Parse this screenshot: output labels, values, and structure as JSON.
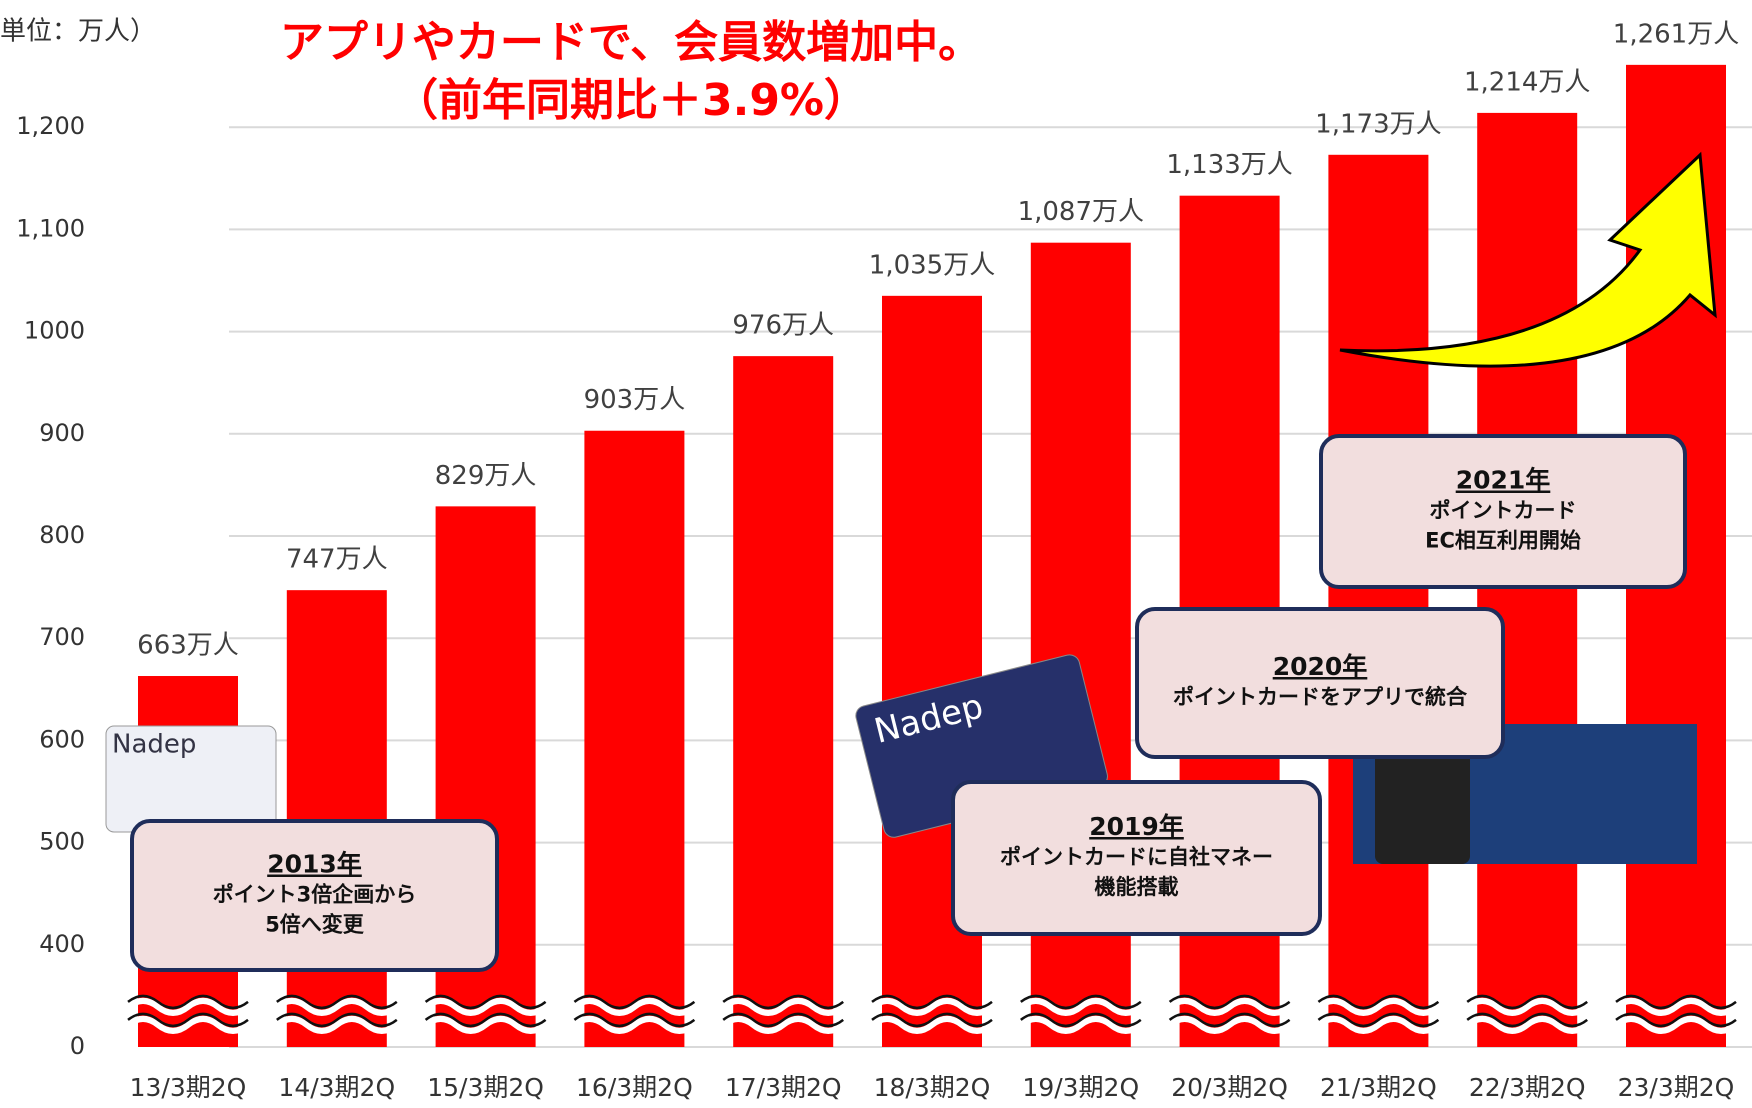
{
  "chart_data": {
    "type": "bar",
    "title": [
      "アプリやカードで、会員数増加中。",
      "（前年同期比＋3.9%）"
    ],
    "unit_label": "単位：万人）",
    "categories": [
      "13/3期2Q",
      "14/3期2Q",
      "15/3期2Q",
      "16/3期2Q",
      "17/3期2Q",
      "18/3期2Q",
      "19/3期2Q",
      "20/3期2Q",
      "21/3期2Q",
      "22/3期2Q",
      "23/3期2Q"
    ],
    "values": [
      663,
      747,
      829,
      903,
      976,
      1035,
      1087,
      1133,
      1173,
      1214,
      1261
    ],
    "value_labels": [
      "663万人",
      "747万人",
      "829万人",
      "903万人",
      "976万人",
      "1,035万人",
      "1,087万人",
      "1,133万人",
      "1,173万人",
      "1,214万人",
      "1,261万人"
    ],
    "color": "#ff0000",
    "ylim": [
      0,
      1300
    ],
    "yticks": [
      0,
      400,
      500,
      600,
      700,
      800,
      900,
      1000,
      {
        "value": 1100,
        "label": "1,100"
      },
      {
        "value": 1200,
        "label": "1,200"
      }
    ],
    "axis_break": true,
    "grid": true,
    "annotations": [
      {
        "year": "2013年",
        "lines": [
          "ポイント3倍企画から",
          "5倍へ変更"
        ]
      },
      {
        "year": "2019年",
        "lines": [
          "ポイントカードに自社マネー",
          "機能搭載"
        ]
      },
      {
        "year": "2020年",
        "lines": [
          "ポイントカードをアプリで統合"
        ]
      },
      {
        "year": "2021年",
        "lines": [
          "ポイントカード",
          "EC相互利用開始"
        ]
      }
    ]
  }
}
